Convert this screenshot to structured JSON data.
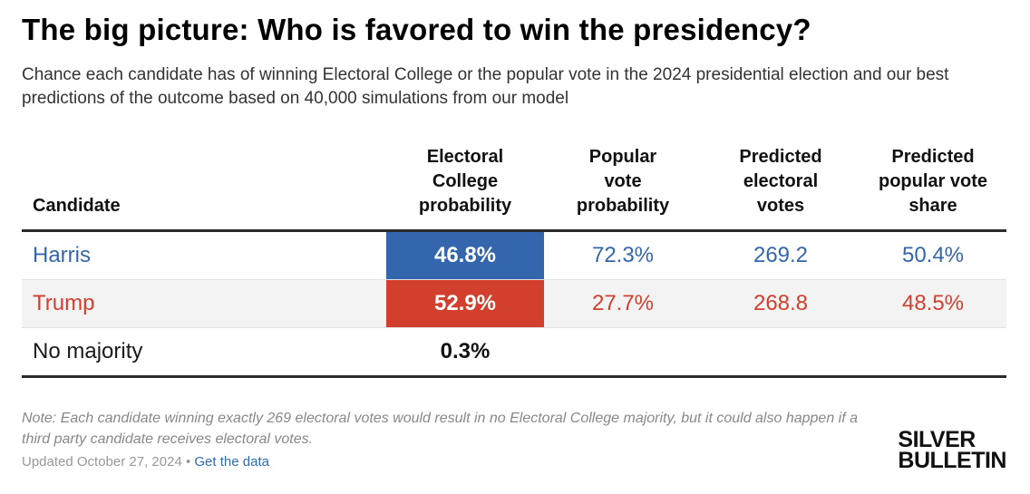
{
  "title": "The big picture: Who is favored to win the presidency?",
  "subtitle": "Chance each candidate has of winning Electoral College or the popular vote in the 2024 presidential election and our best predictions of the outcome based on 40,000 simulations from our model",
  "chart_data": {
    "type": "table",
    "columns": [
      "Candidate",
      "Electoral College probability",
      "Popular vote probability",
      "Predicted electoral votes",
      "Predicted popular vote share"
    ],
    "rows": [
      {
        "candidate": "Harris",
        "ec_prob": "46.8%",
        "pop_prob": "72.3%",
        "ev": "269.2",
        "share": "50.4%",
        "color": "#3466ad",
        "ec_fill": "#3466ad"
      },
      {
        "candidate": "Trump",
        "ec_prob": "52.9%",
        "pop_prob": "27.7%",
        "ev": "268.8",
        "share": "48.5%",
        "color": "#d23f2d",
        "ec_fill": "#d23f2d"
      },
      {
        "candidate": "No majority",
        "ec_prob": "0.3%",
        "pop_prob": "",
        "ev": "",
        "share": "",
        "color": "#1a1a1a",
        "ec_fill": ""
      }
    ]
  },
  "headers": {
    "candidate": "Candidate",
    "ec_prob": [
      "Electoral",
      "College",
      "probability"
    ],
    "pop_prob": [
      "Popular",
      "vote",
      "probability"
    ],
    "ev": [
      "Predicted",
      "electoral",
      "votes"
    ],
    "share": [
      "Predicted",
      "popular vote",
      "share"
    ]
  },
  "note": "Note: Each candidate winning exactly 269 electoral votes would result in no Electoral College majority, but it could also happen if a third party candidate receives electoral votes.",
  "updated": "Updated October 27, 2024",
  "separator": " • ",
  "data_link": "Get the data",
  "logo": {
    "line1": "SILVER",
    "line2": "BULLETIN"
  }
}
